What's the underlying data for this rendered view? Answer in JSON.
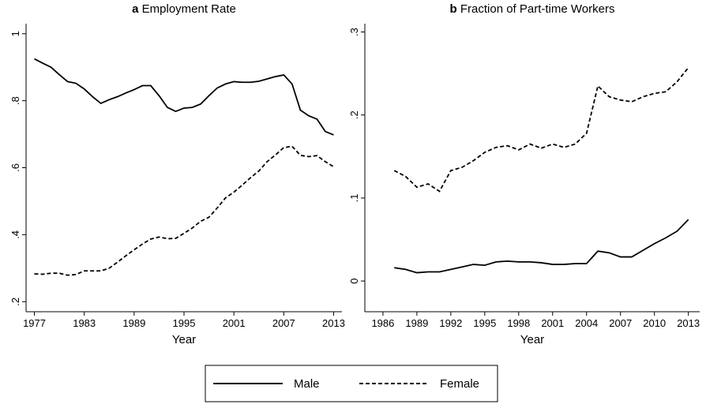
{
  "chart_data": [
    {
      "type": "line",
      "panel": "a",
      "title": "Employment Rate",
      "xlabel": "Year",
      "x": [
        1977,
        1978,
        1979,
        1980,
        1981,
        1982,
        1983,
        1984,
        1985,
        1986,
        1987,
        1988,
        1989,
        1990,
        1991,
        1992,
        1993,
        1994,
        1995,
        1996,
        1997,
        1998,
        1999,
        2000,
        2001,
        2002,
        2003,
        2004,
        2005,
        2006,
        2007,
        2008,
        2009,
        2010,
        2011,
        2012,
        2013
      ],
      "series": [
        {
          "name": "Male",
          "color": "#000000",
          "line_style": "solid",
          "values": [
            0.925,
            0.912,
            0.9,
            0.878,
            0.857,
            0.852,
            0.835,
            0.812,
            0.792,
            0.803,
            0.812,
            0.823,
            0.833,
            0.845,
            0.845,
            0.815,
            0.78,
            0.768,
            0.778,
            0.78,
            0.79,
            0.815,
            0.838,
            0.85,
            0.857,
            0.855,
            0.855,
            0.858,
            0.865,
            0.872,
            0.877,
            0.85,
            0.772,
            0.755,
            0.745,
            0.708,
            0.698
          ]
        },
        {
          "name": "Female",
          "color": "#000000",
          "line_style": "dashed",
          "values": [
            0.283,
            0.282,
            0.285,
            0.285,
            0.279,
            0.281,
            0.292,
            0.292,
            0.292,
            0.3,
            0.318,
            0.337,
            0.355,
            0.372,
            0.387,
            0.393,
            0.388,
            0.389,
            0.404,
            0.42,
            0.44,
            0.452,
            0.48,
            0.51,
            0.527,
            0.548,
            0.57,
            0.59,
            0.618,
            0.638,
            0.66,
            0.664,
            0.637,
            0.633,
            0.636,
            0.618,
            0.603
          ]
        }
      ],
      "xlim": [
        1976,
        2014
      ],
      "xticks": [
        1977,
        1983,
        1989,
        1995,
        2001,
        2007,
        2013
      ],
      "ylim": [
        0.17,
        1.03
      ],
      "yticks": [
        {
          "value": 0.2,
          "label": ".2"
        },
        {
          "value": 0.4,
          "label": ".4"
        },
        {
          "value": 0.6,
          "label": ".6"
        },
        {
          "value": 0.8,
          "label": ".8"
        },
        1
      ]
    },
    {
      "type": "line",
      "panel": "b",
      "title": "Fraction of Part-time Workers",
      "xlabel": "Year",
      "x": [
        1987,
        1988,
        1989,
        1990,
        1991,
        1992,
        1993,
        1994,
        1995,
        1996,
        1997,
        1998,
        1999,
        2000,
        2001,
        2002,
        2003,
        2004,
        2005,
        2006,
        2007,
        2008,
        2009,
        2010,
        2011,
        2012,
        2013
      ],
      "series": [
        {
          "name": "Male",
          "color": "#000000",
          "line_style": "solid",
          "values": [
            0.016,
            0.014,
            0.01,
            0.011,
            0.011,
            0.014,
            0.017,
            0.02,
            0.019,
            0.023,
            0.024,
            0.023,
            0.023,
            0.022,
            0.02,
            0.02,
            0.021,
            0.021,
            0.036,
            0.034,
            0.029,
            0.029,
            0.037,
            0.045,
            0.052,
            0.06,
            0.074
          ]
        },
        {
          "name": "Female",
          "color": "#000000",
          "line_style": "dashed",
          "values": [
            0.133,
            0.126,
            0.113,
            0.117,
            0.108,
            0.133,
            0.137,
            0.145,
            0.155,
            0.161,
            0.163,
            0.158,
            0.165,
            0.16,
            0.165,
            0.161,
            0.165,
            0.178,
            0.235,
            0.222,
            0.218,
            0.216,
            0.222,
            0.226,
            0.228,
            0.24,
            0.257
          ]
        }
      ],
      "xlim": [
        1984.4,
        2014
      ],
      "xticks": [
        1986,
        1989,
        1992,
        1995,
        1998,
        2001,
        2004,
        2007,
        2010,
        2013
      ],
      "ylim": [
        -0.037,
        0.31
      ],
      "yticks": [
        0,
        {
          "value": 0.1,
          "label": ".1"
        },
        {
          "value": 0.2,
          "label": ".2"
        },
        {
          "value": 0.3,
          "label": ".3"
        }
      ]
    }
  ]
}
